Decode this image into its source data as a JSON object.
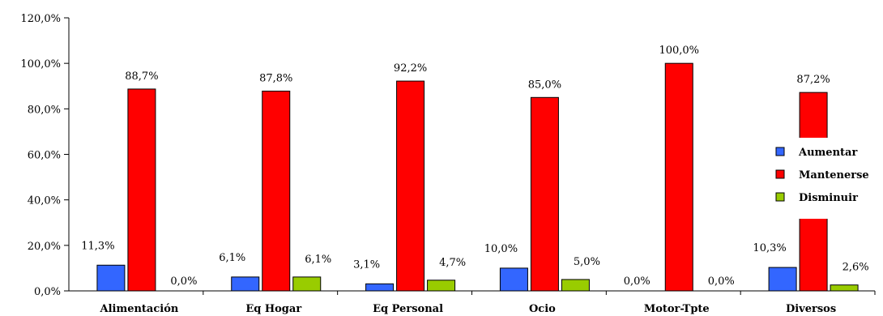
{
  "chart_data": {
    "type": "bar",
    "title": "",
    "xlabel": "",
    "ylabel": "",
    "categories": [
      "Alimentación",
      "Eq Hogar",
      "Eq Personal",
      "Ocio",
      "Motor-Tpte",
      "Diversos"
    ],
    "series": [
      {
        "name": "Aumentar",
        "color": "#3366FF",
        "values": [
          11.3,
          6.1,
          3.1,
          10.0,
          0.0,
          10.3
        ],
        "labels": [
          "11,3%",
          "6,1%",
          "3,1%",
          "10,0%",
          "0,0%",
          "10,3%"
        ]
      },
      {
        "name": "Mantenerse",
        "color": "#FF0000",
        "values": [
          88.7,
          87.8,
          92.2,
          85.0,
          100.0,
          87.2
        ],
        "labels": [
          "88,7%",
          "87,8%",
          "92,2%",
          "85,0%",
          "100,0%",
          "87,2%"
        ]
      },
      {
        "name": "Disminuir",
        "color": "#99CC00",
        "values": [
          0.0,
          6.1,
          4.7,
          5.0,
          0.0,
          2.6
        ],
        "labels": [
          "0,0%",
          "6,1%",
          "4,7%",
          "5,0%",
          "0,0%",
          "2,6%"
        ]
      }
    ],
    "ylim": [
      0,
      120
    ],
    "yticks": [
      0,
      20,
      40,
      60,
      80,
      100,
      120
    ],
    "ytick_labels": [
      "0,0%",
      "20,0%",
      "40,0%",
      "60,0%",
      "80,0%",
      "100,0%",
      "120,0%"
    ],
    "grid": false,
    "legend_position": "right"
  }
}
